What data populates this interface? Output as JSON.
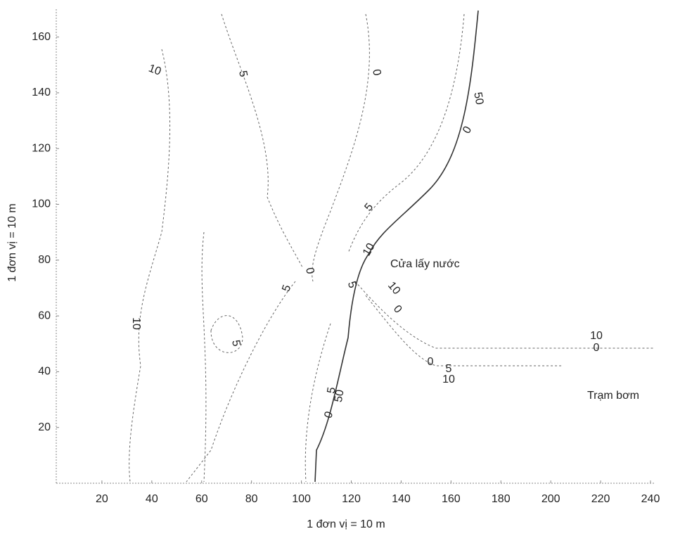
{
  "chart_data": {
    "type": "contour",
    "xlabel": "1 đơn vị = 10 m",
    "ylabel": "1 đơn vị = 10 m",
    "xlim": [
      0,
      240
    ],
    "ylim": [
      0,
      170
    ],
    "xticks": [
      20,
      40,
      60,
      80,
      100,
      120,
      140,
      160,
      180,
      200,
      220,
      240
    ],
    "yticks": [
      20,
      40,
      60,
      80,
      100,
      120,
      140,
      160
    ],
    "grid": false,
    "annotations": [
      "Cửa lấy nước",
      "Trạm bơm"
    ],
    "contour_labels": [
      "10",
      "5",
      "0",
      "50",
      "0",
      "5",
      "10",
      "0",
      "5",
      "5",
      "10",
      "0",
      "10",
      "5",
      "10",
      "0",
      "0",
      "5",
      "10",
      "5",
      "50",
      "0"
    ]
  }
}
